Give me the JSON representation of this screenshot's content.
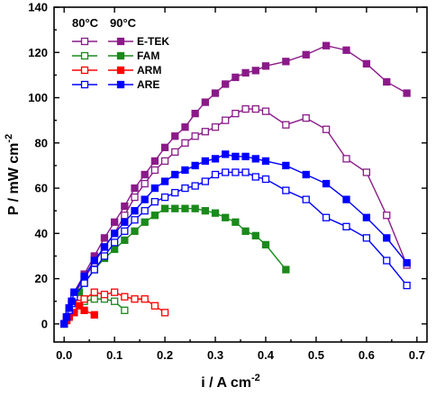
{
  "chart_data": {
    "type": "line",
    "xlabel": "i / A cm",
    "xlabel_sup": "-2",
    "ylabel": "P / mW cm",
    "ylabel_sup": "-2",
    "xlim": [
      -0.02,
      0.72
    ],
    "ylim": [
      -8,
      140
    ],
    "xticks": [
      0.0,
      0.1,
      0.2,
      0.3,
      0.4,
      0.5,
      0.6,
      0.7
    ],
    "xtick_labels": [
      "0.0",
      "0.1",
      "0.2",
      "0.3",
      "0.4",
      "0.5",
      "0.6",
      "0.7"
    ],
    "yticks": [
      0,
      20,
      40,
      60,
      80,
      100,
      120,
      140
    ],
    "ytick_labels": [
      "0",
      "20",
      "40",
      "60",
      "80",
      "100",
      "120",
      "140"
    ],
    "grid": false,
    "legend_position": "top-left",
    "legend_headers": [
      "80°C",
      "90°C"
    ],
    "legend_entries": [
      {
        "label": "E-TEK",
        "color": "#8B1A89"
      },
      {
        "label": "FAM",
        "color": "#1A8A1A"
      },
      {
        "label": "ARM",
        "color": "#FF0000"
      },
      {
        "label": "ARE",
        "color": "#0000FF"
      }
    ],
    "series": [
      {
        "group": "E-TEK",
        "temp": "80°C",
        "marker": "open",
        "color": "#8B1A89",
        "points": [
          [
            0.0,
            0
          ],
          [
            0.005,
            3
          ],
          [
            0.01,
            6
          ],
          [
            0.015,
            9
          ],
          [
            0.02,
            13
          ],
          [
            0.04,
            20
          ],
          [
            0.06,
            27
          ],
          [
            0.08,
            34
          ],
          [
            0.1,
            40
          ],
          [
            0.12,
            48
          ],
          [
            0.14,
            56
          ],
          [
            0.16,
            62
          ],
          [
            0.18,
            68
          ],
          [
            0.2,
            72
          ],
          [
            0.22,
            76
          ],
          [
            0.24,
            80
          ],
          [
            0.26,
            83
          ],
          [
            0.28,
            85
          ],
          [
            0.3,
            87
          ],
          [
            0.32,
            90
          ],
          [
            0.34,
            93
          ],
          [
            0.36,
            95
          ],
          [
            0.38,
            95
          ],
          [
            0.4,
            94
          ],
          [
            0.44,
            88
          ],
          [
            0.48,
            91
          ],
          [
            0.52,
            86
          ],
          [
            0.56,
            73
          ],
          [
            0.6,
            67
          ],
          [
            0.64,
            48
          ],
          [
            0.68,
            26
          ]
        ]
      },
      {
        "group": "E-TEK",
        "temp": "90°C",
        "marker": "filled",
        "color": "#8B1A89",
        "points": [
          [
            0.0,
            0
          ],
          [
            0.005,
            3
          ],
          [
            0.01,
            7
          ],
          [
            0.015,
            10
          ],
          [
            0.02,
            14
          ],
          [
            0.04,
            22
          ],
          [
            0.06,
            30
          ],
          [
            0.08,
            38
          ],
          [
            0.1,
            45
          ],
          [
            0.12,
            52
          ],
          [
            0.14,
            60
          ],
          [
            0.16,
            66
          ],
          [
            0.18,
            72
          ],
          [
            0.2,
            78
          ],
          [
            0.22,
            83
          ],
          [
            0.24,
            87
          ],
          [
            0.26,
            93
          ],
          [
            0.28,
            98
          ],
          [
            0.3,
            102
          ],
          [
            0.32,
            106
          ],
          [
            0.34,
            109
          ],
          [
            0.36,
            111
          ],
          [
            0.38,
            112
          ],
          [
            0.4,
            114
          ],
          [
            0.44,
            116
          ],
          [
            0.48,
            119
          ],
          [
            0.52,
            123
          ],
          [
            0.56,
            121
          ],
          [
            0.6,
            115
          ],
          [
            0.64,
            107
          ],
          [
            0.68,
            102
          ]
        ]
      },
      {
        "group": "FAM",
        "temp": "80°C",
        "marker": "open",
        "color": "#1A8A1A",
        "points": [
          [
            0.0,
            0
          ],
          [
            0.005,
            2
          ],
          [
            0.01,
            4
          ],
          [
            0.02,
            7
          ],
          [
            0.03,
            9
          ],
          [
            0.04,
            10
          ],
          [
            0.06,
            11
          ],
          [
            0.08,
            11
          ],
          [
            0.1,
            10
          ],
          [
            0.12,
            6
          ]
        ]
      },
      {
        "group": "FAM",
        "temp": "90°C",
        "marker": "filled",
        "color": "#1A8A1A",
        "points": [
          [
            0.0,
            0
          ],
          [
            0.005,
            2
          ],
          [
            0.01,
            5
          ],
          [
            0.02,
            9
          ],
          [
            0.03,
            14
          ],
          [
            0.04,
            18
          ],
          [
            0.06,
            24
          ],
          [
            0.08,
            29
          ],
          [
            0.1,
            33
          ],
          [
            0.12,
            37
          ],
          [
            0.14,
            41
          ],
          [
            0.16,
            45
          ],
          [
            0.18,
            48
          ],
          [
            0.2,
            51
          ],
          [
            0.22,
            51
          ],
          [
            0.24,
            51
          ],
          [
            0.26,
            51
          ],
          [
            0.28,
            50
          ],
          [
            0.3,
            49
          ],
          [
            0.32,
            47
          ],
          [
            0.34,
            45
          ],
          [
            0.36,
            41
          ],
          [
            0.38,
            39
          ],
          [
            0.4,
            35
          ],
          [
            0.44,
            24
          ]
        ]
      },
      {
        "group": "ARM",
        "temp": "80°C",
        "marker": "open",
        "color": "#FF0000",
        "points": [
          [
            0.0,
            0
          ],
          [
            0.005,
            2
          ],
          [
            0.01,
            4
          ],
          [
            0.02,
            7
          ],
          [
            0.03,
            9
          ],
          [
            0.04,
            11
          ],
          [
            0.06,
            14
          ],
          [
            0.08,
            13
          ],
          [
            0.1,
            14
          ],
          [
            0.12,
            12
          ],
          [
            0.14,
            11
          ],
          [
            0.16,
            11
          ],
          [
            0.18,
            8
          ],
          [
            0.2,
            5
          ]
        ]
      },
      {
        "group": "ARM",
        "temp": "90°C",
        "marker": "filled",
        "color": "#FF0000",
        "points": [
          [
            0.0,
            0
          ],
          [
            0.005,
            1.5
          ],
          [
            0.01,
            3
          ],
          [
            0.02,
            5
          ],
          [
            0.03,
            8
          ],
          [
            0.04,
            6
          ],
          [
            0.06,
            4
          ]
        ]
      },
      {
        "group": "ARE",
        "temp": "80°C",
        "marker": "open",
        "color": "#0000FF",
        "points": [
          [
            0.0,
            0
          ],
          [
            0.005,
            3
          ],
          [
            0.01,
            6
          ],
          [
            0.015,
            9
          ],
          [
            0.02,
            12
          ],
          [
            0.04,
            18
          ],
          [
            0.06,
            24
          ],
          [
            0.08,
            30
          ],
          [
            0.1,
            36
          ],
          [
            0.12,
            41
          ],
          [
            0.14,
            46
          ],
          [
            0.16,
            50
          ],
          [
            0.18,
            54
          ],
          [
            0.2,
            56
          ],
          [
            0.22,
            58
          ],
          [
            0.24,
            60
          ],
          [
            0.26,
            61
          ],
          [
            0.28,
            63
          ],
          [
            0.3,
            66
          ],
          [
            0.32,
            67
          ],
          [
            0.34,
            67
          ],
          [
            0.36,
            67
          ],
          [
            0.38,
            65
          ],
          [
            0.4,
            64
          ],
          [
            0.44,
            59
          ],
          [
            0.48,
            55
          ],
          [
            0.52,
            47
          ],
          [
            0.56,
            43
          ],
          [
            0.6,
            38
          ],
          [
            0.64,
            28
          ],
          [
            0.68,
            17
          ]
        ]
      },
      {
        "group": "ARE",
        "temp": "90°C",
        "marker": "filled",
        "color": "#0000FF",
        "points": [
          [
            0.0,
            0
          ],
          [
            0.005,
            3
          ],
          [
            0.01,
            7
          ],
          [
            0.015,
            10
          ],
          [
            0.02,
            14
          ],
          [
            0.04,
            21
          ],
          [
            0.06,
            28
          ],
          [
            0.08,
            34
          ],
          [
            0.1,
            40
          ],
          [
            0.12,
            45
          ],
          [
            0.14,
            50
          ],
          [
            0.16,
            55
          ],
          [
            0.18,
            60
          ],
          [
            0.2,
            63
          ],
          [
            0.22,
            66
          ],
          [
            0.24,
            68
          ],
          [
            0.26,
            70
          ],
          [
            0.28,
            72
          ],
          [
            0.3,
            73
          ],
          [
            0.32,
            75
          ],
          [
            0.34,
            74
          ],
          [
            0.36,
            74
          ],
          [
            0.38,
            73
          ],
          [
            0.4,
            72
          ],
          [
            0.44,
            70
          ],
          [
            0.48,
            66
          ],
          [
            0.52,
            62
          ],
          [
            0.56,
            55
          ],
          [
            0.6,
            47
          ],
          [
            0.64,
            38
          ],
          [
            0.68,
            27
          ]
        ]
      }
    ]
  }
}
